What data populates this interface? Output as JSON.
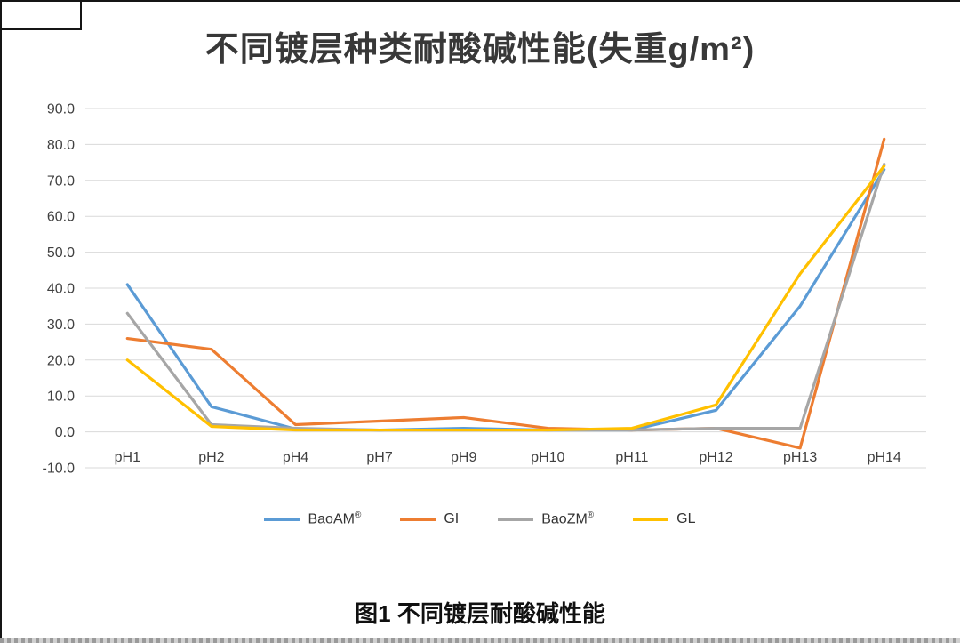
{
  "title": "不同镀层种类耐酸碱性能(失重g/m²)",
  "caption": "图1 不同镀层耐酸碱性能",
  "chart_data": {
    "type": "line",
    "title": "不同镀层种类耐酸碱性能(失重g/m²)",
    "categories": [
      "pH1",
      "pH2",
      "pH4",
      "pH7",
      "pH9",
      "pH10",
      "pH11",
      "pH12",
      "pH13",
      "pH14"
    ],
    "series": [
      {
        "name": "BaoAM",
        "suffix": "®",
        "color": "#5B9BD5",
        "values": [
          41.0,
          7.0,
          0.8,
          0.5,
          1.0,
          0.5,
          0.5,
          6.0,
          35.0,
          73.0
        ]
      },
      {
        "name": "GI",
        "suffix": "",
        "color": "#ED7D31",
        "values": [
          26.0,
          23.0,
          2.0,
          3.0,
          4.0,
          1.0,
          0.5,
          1.0,
          -4.5,
          81.5
        ]
      },
      {
        "name": "BaoZM",
        "suffix": "®",
        "color": "#A6A6A6",
        "values": [
          33.0,
          2.0,
          1.0,
          0.5,
          0.5,
          0.5,
          0.5,
          1.0,
          1.0,
          74.5
        ]
      },
      {
        "name": "GL",
        "suffix": "",
        "color": "#FFC000",
        "values": [
          20.0,
          1.5,
          0.5,
          0.5,
          0.5,
          0.5,
          1.0,
          7.5,
          44.0,
          74.0
        ]
      }
    ],
    "ylim": [
      -10,
      90
    ],
    "ytick_step": 10,
    "ytick_labels": [
      "90.0",
      "80.0",
      "70.0",
      "60.0",
      "50.0",
      "40.0",
      "30.0",
      "20.0",
      "10.0",
      "0.0",
      "-10.0"
    ],
    "grid": true,
    "legend_position": "bottom",
    "gridline_color": "#D9D9D9",
    "axis_label_color": "#404040"
  }
}
